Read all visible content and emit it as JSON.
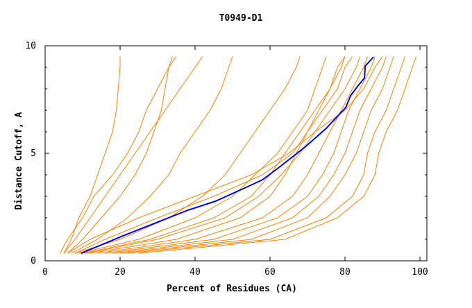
{
  "chart_data": {
    "type": "line",
    "title": "T0949-D1",
    "xlabel": "Percent of Residues (CA)",
    "ylabel": "Distance Cutoff, A",
    "xlim": [
      0,
      102
    ],
    "ylim": [
      0,
      10
    ],
    "xticks": [
      0,
      20,
      40,
      60,
      80,
      100
    ],
    "yticks": [
      0,
      5,
      10
    ],
    "grid": false,
    "colors": {
      "models": "#ff8000",
      "highlight": "#0000ff"
    },
    "y_levels": [
      0.35,
      1,
      2,
      3,
      4,
      5,
      6,
      7,
      8,
      9,
      9.5
    ],
    "model_series_x": [
      [
        5,
        7,
        9,
        12,
        14,
        16,
        18,
        19,
        19.5,
        20,
        20
      ],
      [
        6,
        10,
        15,
        20,
        24,
        27,
        29,
        31,
        32,
        33,
        34
      ],
      [
        7,
        14,
        22,
        28,
        33,
        36,
        40,
        44,
        47,
        49,
        50
      ],
      [
        8,
        20,
        33,
        42,
        48,
        52,
        56,
        60,
        64,
        67,
        68
      ],
      [
        10,
        28,
        45,
        55,
        60,
        64,
        68,
        72,
        76,
        78,
        80
      ],
      [
        12,
        35,
        52,
        60,
        64,
        67,
        70,
        73,
        76,
        79,
        80
      ],
      [
        14,
        40,
        58,
        66,
        70,
        73,
        76,
        79,
        82,
        85,
        86
      ],
      [
        16,
        45,
        62,
        70,
        74,
        77,
        79,
        81,
        84,
        87,
        88
      ],
      [
        18,
        50,
        66,
        73,
        77,
        80,
        82,
        84,
        87,
        90,
        91
      ],
      [
        20,
        55,
        70,
        76,
        80,
        83,
        85,
        87,
        90,
        92,
        93
      ],
      [
        22,
        60,
        75,
        82,
        85,
        86,
        88,
        91,
        93,
        95,
        96
      ],
      [
        25,
        64,
        78,
        85,
        88,
        89,
        91,
        94,
        96,
        98,
        99
      ],
      [
        6,
        12,
        25,
        40,
        55,
        65,
        72,
        80,
        85,
        88,
        90
      ],
      [
        5,
        8,
        12,
        16,
        20,
        24,
        28,
        32,
        36,
        40,
        42
      ],
      [
        8,
        16,
        30,
        45,
        58,
        66,
        70,
        74,
        78,
        80,
        82
      ],
      [
        9,
        25,
        40,
        50,
        56,
        62,
        66,
        70,
        72,
        74,
        75
      ],
      [
        4,
        6,
        10,
        13,
        18,
        22,
        25,
        27,
        30,
        33,
        35
      ],
      [
        11,
        30,
        48,
        57,
        63,
        68,
        72,
        76,
        80,
        83,
        84
      ]
    ],
    "highlight_series": {
      "x": [
        9.6,
        21.3,
        38,
        45.4,
        52.8,
        58,
        62,
        69.4,
        75,
        80.2,
        81.5,
        83.3,
        85.2,
        85.4,
        87.6
      ],
      "y": [
        0.35,
        1.2,
        2.35,
        2.77,
        3.35,
        3.77,
        4.29,
        5.3,
        6.16,
        7.13,
        7.68,
        8.1,
        8.5,
        9.06,
        9.48
      ]
    }
  }
}
